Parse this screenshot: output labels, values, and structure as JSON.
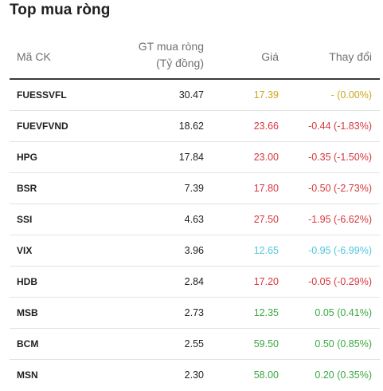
{
  "title": "Top mua ròng",
  "colors": {
    "ref": "#c9a81a",
    "down": "#d9363e",
    "floor": "#4fc6dd",
    "up": "#3aa83f"
  },
  "columns": {
    "code": "Mã CK",
    "value_line1": "GT mua ròng",
    "value_line2": "(Tỷ đồng)",
    "price": "Giá",
    "change": "Thay đổi"
  },
  "rows": [
    {
      "code": "FUESSVFL",
      "value": "30.47",
      "price": "17.39",
      "change": "- (0.00%)",
      "status": "ref"
    },
    {
      "code": "FUEVFVND",
      "value": "18.62",
      "price": "23.66",
      "change": "-0.44 (-1.83%)",
      "status": "down"
    },
    {
      "code": "HPG",
      "value": "17.84",
      "price": "23.00",
      "change": "-0.35 (-1.50%)",
      "status": "down"
    },
    {
      "code": "BSR",
      "value": "7.39",
      "price": "17.80",
      "change": "-0.50 (-2.73%)",
      "status": "down"
    },
    {
      "code": "SSI",
      "value": "4.63",
      "price": "27.50",
      "change": "-1.95 (-6.62%)",
      "status": "down"
    },
    {
      "code": "VIX",
      "value": "3.96",
      "price": "12.65",
      "change": "-0.95 (-6.99%)",
      "status": "floor"
    },
    {
      "code": "HDB",
      "value": "2.84",
      "price": "17.20",
      "change": "-0.05 (-0.29%)",
      "status": "down"
    },
    {
      "code": "MSB",
      "value": "2.73",
      "price": "12.35",
      "change": "0.05 (0.41%)",
      "status": "up"
    },
    {
      "code": "BCM",
      "value": "2.55",
      "price": "59.50",
      "change": "0.50 (0.85%)",
      "status": "up"
    },
    {
      "code": "MSN",
      "value": "2.30",
      "price": "58.00",
      "change": "0.20 (0.35%)",
      "status": "up"
    }
  ]
}
